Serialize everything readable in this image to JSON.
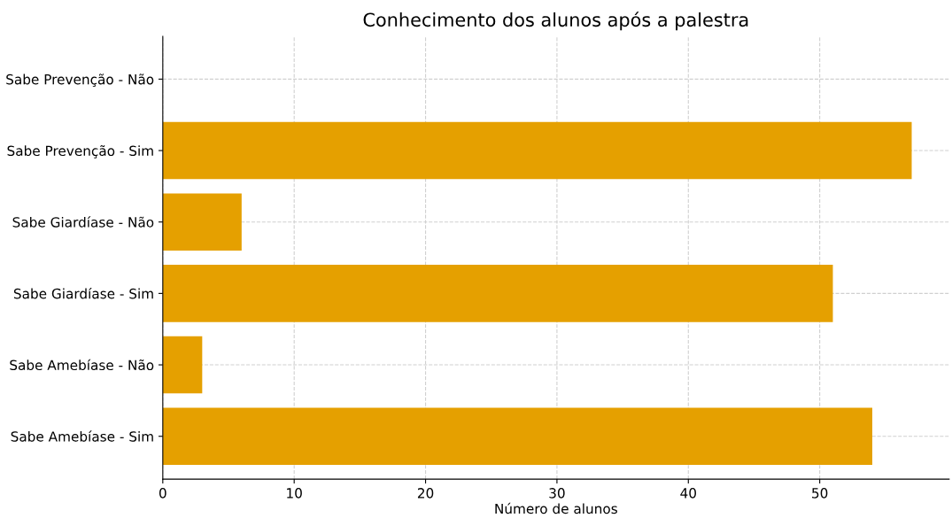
{
  "chart_data": {
    "type": "bar",
    "orientation": "horizontal",
    "title": "Conhecimento dos alunos após a palestra",
    "xlabel": "Número de alunos",
    "categories": [
      "Sabe Prevenção - Não",
      "Sabe Prevenção - Sim",
      "Sabe Giardíase - Não",
      "Sabe Giardíase - Sim",
      "Sabe Amebíase - Não",
      "Sabe Amebíase - Sim"
    ],
    "values": [
      0,
      57,
      6,
      51,
      3,
      54
    ],
    "color": "#e5a000",
    "xlim": [
      0,
      59.85
    ],
    "xticks": [
      0,
      10,
      20,
      30,
      40,
      50
    ],
    "grid": true,
    "line_style": "dashed"
  }
}
